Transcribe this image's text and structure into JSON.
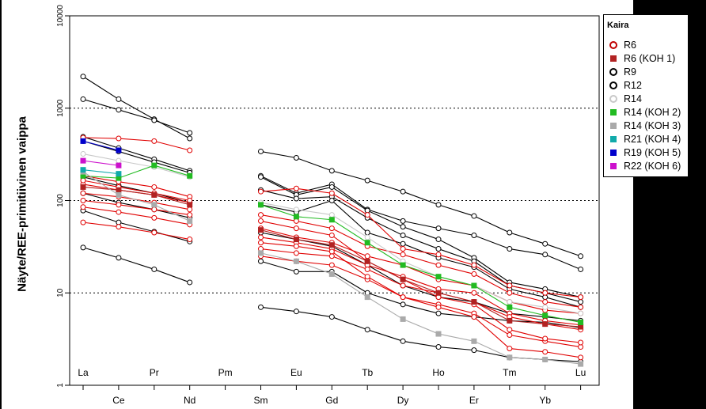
{
  "chart_data": {
    "type": "line",
    "yscale": "log",
    "ylim": [
      1,
      10000
    ],
    "ylabel": "Näyte/REE-primitiivinen vaippa",
    "yticks": [
      "1",
      "10",
      "100",
      "1000",
      "10000"
    ],
    "gridlines_at": [
      10,
      100,
      1000
    ],
    "categories": [
      "La",
      "Ce",
      "Pr",
      "Nd",
      "Pm",
      "Sm",
      "Eu",
      "Gd",
      "Tb",
      "Dy",
      "Ho",
      "Er",
      "Tm",
      "Yb",
      "Lu"
    ],
    "top_labels": [
      "La",
      "Pr",
      "Pm",
      "Eu",
      "Tb",
      "Ho",
      "Tm",
      "Lu"
    ],
    "bottom_labels": [
      "Ce",
      "Nd",
      "Sm",
      "Gd",
      "Dy",
      "Er",
      "Yb"
    ],
    "legend": {
      "title": "Kaira",
      "entries": [
        {
          "label": "R6",
          "symbol": "circle",
          "color": "#c00000"
        },
        {
          "label": "R6 (KOH 1)",
          "symbol": "square",
          "color": "#b22222"
        },
        {
          "label": "R9",
          "symbol": "circle",
          "color": "#000000"
        },
        {
          "label": "R12",
          "symbol": "circle",
          "color": "#000000"
        },
        {
          "label": "R14",
          "symbol": "circle",
          "color": "#c8c8c8"
        },
        {
          "label": "R14 (KOH 2)",
          "symbol": "square",
          "color": "#22bb22"
        },
        {
          "label": "R14 (KOH 3)",
          "symbol": "square",
          "color": "#aaaaaa"
        },
        {
          "label": "R21 (KOH 4)",
          "symbol": "square",
          "color": "#11aaaa"
        },
        {
          "label": "R19 (KOH 5)",
          "symbol": "square",
          "color": "#0000cc"
        },
        {
          "label": "R22 (KOH 6)",
          "symbol": "square",
          "color": "#cc11cc"
        }
      ]
    },
    "series": [
      {
        "group": "R9",
        "color": "#000000",
        "marker": "circle",
        "values": [
          2200,
          1250,
          760,
          470,
          null,
          340,
          290,
          210,
          165,
          125,
          90,
          68,
          45,
          34,
          25
        ]
      },
      {
        "group": "R9",
        "color": "#000000",
        "marker": "circle",
        "values": [
          1250,
          960,
          740,
          540,
          null,
          185,
          120,
          150,
          80,
          60,
          50,
          42,
          30,
          26,
          18
        ]
      },
      {
        "group": "R9",
        "color": "#000000",
        "marker": "circle",
        "values": [
          490,
          370,
          280,
          210,
          null,
          180,
          115,
          140,
          78,
          52,
          38,
          24,
          13,
          11,
          9
        ]
      },
      {
        "group": "R9",
        "color": "#000000",
        "marker": "circle",
        "values": [
          440,
          340,
          260,
          200,
          null,
          130,
          105,
          110,
          65,
          42,
          30,
          22,
          12,
          10,
          8
        ]
      },
      {
        "group": "R12",
        "color": "#000000",
        "marker": "circle",
        "values": [
          180,
          145,
          120,
          95,
          null,
          90,
          75,
          100,
          45,
          34,
          24,
          19,
          11,
          9,
          7
        ]
      },
      {
        "group": "R9",
        "color": "#000000",
        "marker": "circle",
        "values": [
          78,
          58,
          46,
          36,
          null,
          22,
          17,
          17,
          10,
          7.5,
          6,
          5.5,
          5,
          4.8,
          4.2
        ]
      },
      {
        "group": "R9",
        "color": "#000000",
        "marker": "circle",
        "values": [
          31,
          24,
          18,
          13,
          null,
          7,
          6.3,
          5.5,
          4,
          3,
          2.6,
          2.4,
          2,
          1.9,
          1.8
        ]
      },
      {
        "group": "R12",
        "color": "#000000",
        "marker": "circle",
        "values": [
          120,
          95,
          80,
          65,
          null,
          45,
          38,
          32,
          20,
          12,
          9,
          8,
          6,
          5.5,
          5
        ]
      },
      {
        "group": "R6",
        "color": "#e00000",
        "marker": "circle",
        "values": [
          480,
          470,
          440,
          350,
          null,
          125,
          135,
          120,
          70,
          30,
          26,
          20,
          12,
          10,
          9
        ]
      },
      {
        "group": "R6",
        "color": "#e00000",
        "marker": "circle",
        "values": [
          185,
          160,
          140,
          110,
          null,
          70,
          60,
          50,
          32,
          26,
          20,
          16,
          10,
          8,
          7
        ]
      },
      {
        "group": "R6",
        "color": "#e00000",
        "marker": "circle",
        "values": [
          150,
          130,
          115,
          95,
          null,
          50,
          40,
          35,
          25,
          20,
          14,
          12,
          8,
          6.5,
          6
        ]
      },
      {
        "group": "R6",
        "color": "#e00000",
        "marker": "circle",
        "values": [
          120,
          110,
          95,
          80,
          null,
          40,
          35,
          30,
          20,
          15,
          11,
          10,
          6,
          5,
          4.5
        ]
      },
      {
        "group": "R6",
        "color": "#e00000",
        "marker": "circle",
        "values": [
          85,
          75,
          65,
          55,
          null,
          30,
          27,
          25,
          18,
          12,
          10,
          8,
          5.5,
          4.6,
          4
        ]
      },
      {
        "group": "R6",
        "color": "#e00000",
        "marker": "circle",
        "values": [
          58,
          52,
          45,
          38,
          null,
          25,
          22,
          20,
          14,
          9,
          7.5,
          6,
          3.5,
          3,
          2.6
        ]
      },
      {
        "group": "R6",
        "color": "#e00000",
        "marker": "circle",
        "values": [
          165,
          140,
          120,
          100,
          null,
          60,
          50,
          42,
          22,
          14,
          9,
          7.5,
          4,
          3.2,
          2.9
        ]
      },
      {
        "group": "R6",
        "color": "#e00000",
        "marker": "circle",
        "values": [
          100,
          90,
          80,
          70,
          null,
          35,
          32,
          28,
          15,
          9,
          7,
          5.5,
          2.5,
          2.3,
          2
        ]
      },
      {
        "group": "R6 (KOH 1)",
        "color": "#b22222",
        "marker": "square",
        "values": [
          140,
          130,
          115,
          90,
          null,
          48,
          38,
          33,
          22,
          14,
          10,
          8,
          5,
          4.6,
          4.3
        ]
      },
      {
        "group": "R14",
        "color": "#c8c8c8",
        "marker": "circle",
        "values": [
          320,
          270,
          230,
          180,
          null,
          95,
          80,
          70,
          40,
          22,
          15,
          12,
          8,
          7,
          6
        ]
      },
      {
        "group": "R14 (KOH 2)",
        "color": "#22bb22",
        "marker": "square",
        "values": [
          185,
          175,
          240,
          185,
          null,
          90,
          67,
          62,
          35,
          20,
          15,
          12,
          7,
          5.7,
          4.8
        ]
      },
      {
        "group": "R14 (KOH 3)",
        "color": "#aaaaaa",
        "marker": "square",
        "values": [
          205,
          115,
          90,
          60,
          null,
          27,
          22,
          16,
          9,
          5.2,
          3.6,
          3,
          2,
          1.9,
          1.7
        ]
      },
      {
        "group": "R21 (KOH 4)",
        "color": "#11aaaa",
        "marker": "square",
        "values": [
          215,
          195,
          null,
          null,
          null,
          null,
          null,
          null,
          null,
          null,
          null,
          null,
          null,
          null,
          null
        ]
      },
      {
        "group": "R19 (KOH 5)",
        "color": "#0000cc",
        "marker": "square",
        "values": [
          440,
          350,
          null,
          null,
          null,
          null,
          null,
          null,
          null,
          null,
          null,
          null,
          null,
          null,
          null
        ]
      },
      {
        "group": "R22 (KOH 6)",
        "color": "#cc11cc",
        "marker": "square",
        "values": [
          270,
          240,
          null,
          null,
          null,
          null,
          null,
          null,
          null,
          null,
          null,
          null,
          null,
          null,
          null
        ]
      }
    ]
  }
}
